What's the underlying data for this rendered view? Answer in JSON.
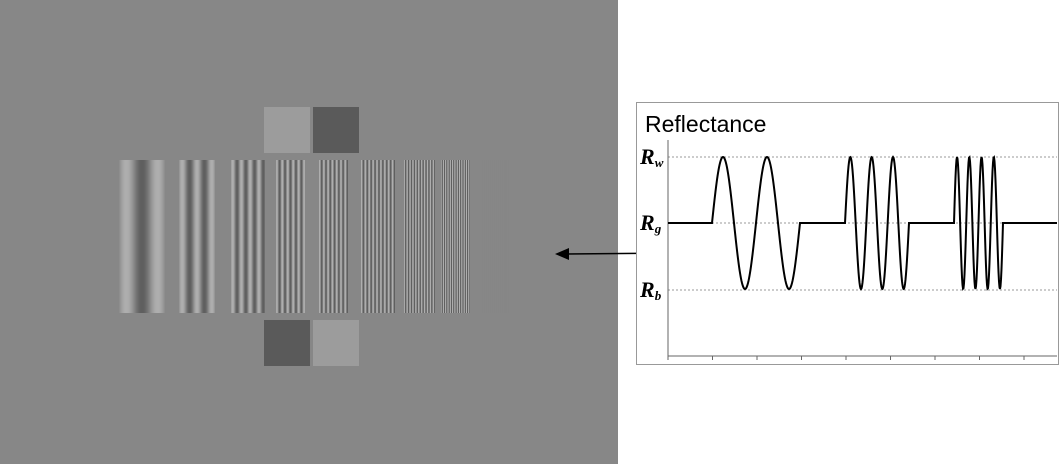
{
  "panel": {
    "title": "Reflectance",
    "levels": [
      {
        "symbol": "R",
        "subscript": "w"
      },
      {
        "symbol": "R",
        "subscript": "g"
      },
      {
        "symbol": "R",
        "subscript": "b"
      }
    ]
  }
}
